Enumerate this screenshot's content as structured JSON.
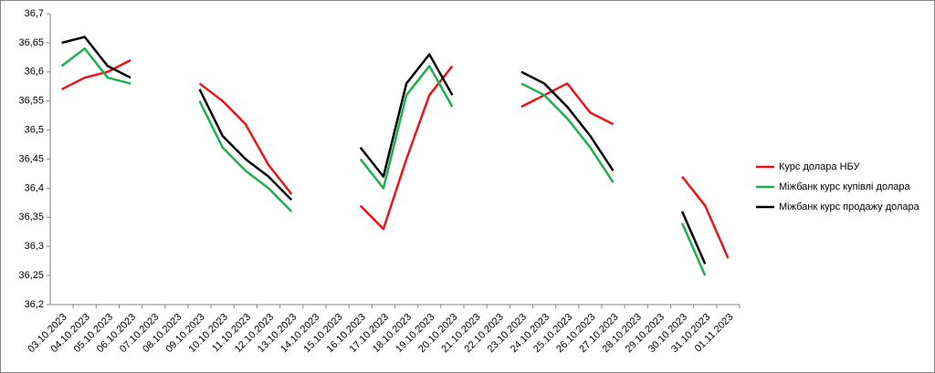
{
  "chart_data": {
    "type": "line",
    "categories": [
      "03.10.2023",
      "04.10.2023",
      "05.10.2023",
      "06.10.2023",
      "07.10.2023",
      "08.10.2023",
      "09.10.2023",
      "10.10.2023",
      "11.10.2023",
      "12.10.2023",
      "13.10.2023",
      "14.10.2023",
      "15.10.2023",
      "16.10.2023",
      "17.10.2023",
      "18.10.2023",
      "19.10.2023",
      "20.10.2023",
      "21.10.2023",
      "22.10.2023",
      "23.10.2023",
      "24.10.2023",
      "25.10.2023",
      "26.10.2023",
      "27.10.2023",
      "28.10.2023",
      "29.10.2023",
      "30.10.2023",
      "31.10.2023",
      "01.11.2023"
    ],
    "series": [
      {
        "name": "Курс долара НБУ",
        "color": "#e8161b",
        "values": [
          36.57,
          36.59,
          36.6,
          36.62,
          null,
          null,
          36.58,
          36.55,
          36.51,
          36.44,
          36.39,
          null,
          null,
          36.37,
          36.33,
          36.45,
          36.56,
          36.61,
          null,
          null,
          36.54,
          36.56,
          36.58,
          36.53,
          36.51,
          null,
          null,
          36.42,
          36.37,
          36.28
        ]
      },
      {
        "name": "Міжбанк курс купівлі долара",
        "color": "#1cb050",
        "values": [
          36.61,
          36.64,
          36.59,
          36.58,
          null,
          null,
          36.55,
          36.47,
          36.43,
          36.4,
          36.36,
          null,
          null,
          36.45,
          36.4,
          36.56,
          36.61,
          36.54,
          null,
          null,
          36.58,
          36.56,
          36.52,
          36.47,
          36.41,
          null,
          null,
          36.34,
          36.25,
          null
        ]
      },
      {
        "name": "Міжбанк курс продажу долара",
        "color": "#000000",
        "values": [
          36.65,
          36.66,
          36.61,
          36.59,
          null,
          null,
          36.57,
          36.49,
          36.45,
          36.42,
          36.38,
          null,
          null,
          36.47,
          36.42,
          36.58,
          36.63,
          36.56,
          null,
          null,
          36.6,
          36.58,
          36.54,
          36.49,
          36.43,
          null,
          null,
          36.36,
          36.27,
          null
        ]
      }
    ],
    "ylim": [
      36.2,
      36.7
    ],
    "yticks": [
      {
        "value": 36.2,
        "label": "36,2"
      },
      {
        "value": 36.25,
        "label": "36,25"
      },
      {
        "value": 36.3,
        "label": "36,3"
      },
      {
        "value": 36.35,
        "label": "36,35"
      },
      {
        "value": 36.4,
        "label": "36,4"
      },
      {
        "value": 36.45,
        "label": "36,45"
      },
      {
        "value": 36.5,
        "label": "36,5"
      },
      {
        "value": 36.55,
        "label": "36,55"
      },
      {
        "value": 36.6,
        "label": "36,6"
      },
      {
        "value": 36.65,
        "label": "36,65"
      },
      {
        "value": 36.7,
        "label": "36,7"
      }
    ],
    "grid": false,
    "legend": "right"
  }
}
